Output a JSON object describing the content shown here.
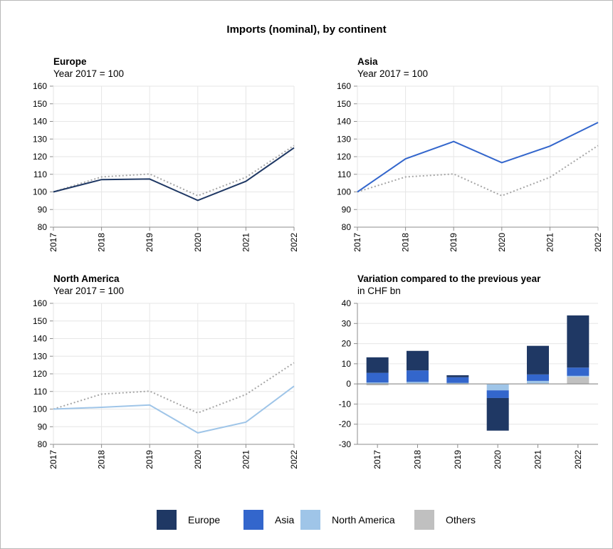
{
  "title": "Imports (nominal), by continent",
  "colors": {
    "europe": "#1f3864",
    "asia": "#3366cc",
    "north_america": "#9fc5e8",
    "others": "#c0c0c0",
    "reference_line": "#a6a6a6",
    "grid": "#e6e6e6"
  },
  "legend": [
    {
      "label": "Europe",
      "color": "#1f3864"
    },
    {
      "label": "Asia",
      "color": "#3366cc"
    },
    {
      "label": "North America",
      "color": "#9fc5e8"
    },
    {
      "label": "Others",
      "color": "#c0c0c0"
    }
  ],
  "chart_data": [
    {
      "type": "line",
      "title": "Europe",
      "subtitle": "Year 2017 = 100",
      "x": [
        "2017",
        "2018",
        "2019",
        "2020",
        "2021",
        "2022"
      ],
      "ylim": [
        80,
        160
      ],
      "yticks": [
        80,
        90,
        100,
        110,
        120,
        130,
        140,
        150,
        160
      ],
      "grid": true,
      "series": [
        {
          "values": [
            100,
            107,
            107.3,
            95.2,
            106,
            125
          ],
          "color": "#1f3864",
          "style": "solid"
        },
        {
          "values": [
            100,
            108.5,
            110.2,
            97.8,
            108.3,
            126.3
          ],
          "color": "#a6a6a6",
          "style": "dotted"
        }
      ]
    },
    {
      "type": "line",
      "title": "Asia",
      "subtitle": "Year 2017 = 100",
      "x": [
        "2017",
        "2018",
        "2019",
        "2020",
        "2021",
        "2022"
      ],
      "ylim": [
        80,
        160
      ],
      "yticks": [
        80,
        90,
        100,
        110,
        120,
        130,
        140,
        150,
        160
      ],
      "grid": true,
      "series": [
        {
          "values": [
            100,
            118.8,
            128.6,
            116.6,
            126,
            139.4
          ],
          "color": "#3366cc",
          "style": "solid"
        },
        {
          "values": [
            100,
            108.5,
            110.2,
            97.8,
            108.3,
            126.3
          ],
          "color": "#a6a6a6",
          "style": "dotted"
        }
      ]
    },
    {
      "type": "line",
      "title": "North America",
      "subtitle": "Year 2017 = 100",
      "x": [
        "2017",
        "2018",
        "2019",
        "2020",
        "2021",
        "2022"
      ],
      "ylim": [
        80,
        160
      ],
      "yticks": [
        80,
        90,
        100,
        110,
        120,
        130,
        140,
        150,
        160
      ],
      "grid": true,
      "series": [
        {
          "values": [
            100,
            101,
            102.3,
            86.5,
            92.6,
            113
          ],
          "color": "#9fc5e8",
          "style": "solid"
        },
        {
          "values": [
            100,
            108.5,
            110.2,
            97.8,
            108.3,
            126.3
          ],
          "color": "#a6a6a6",
          "style": "dotted"
        }
      ]
    },
    {
      "type": "bar",
      "stacked": true,
      "title": "Variation compared to the previous year",
      "subtitle": "in CHF bn",
      "categories": [
        "2017",
        "2018",
        "2019",
        "2020",
        "2021",
        "2022"
      ],
      "ylim": [
        -30,
        40
      ],
      "yticks": [
        -30,
        -20,
        -10,
        0,
        10,
        20,
        30,
        40
      ],
      "grid": true,
      "series": [
        {
          "name": "Others",
          "color": "#c0c0c0",
          "values": [
            -0.7,
            0.3,
            -0.3,
            -0.2,
            0.2,
            3.5
          ]
        },
        {
          "name": "North America",
          "color": "#9fc5e8",
          "values": [
            0.7,
            0.7,
            0.5,
            -3.0,
            1.3,
            0.5
          ]
        },
        {
          "name": "Asia",
          "color": "#3366cc",
          "values": [
            4.8,
            5.7,
            2.8,
            -3.8,
            3.2,
            4.1
          ]
        },
        {
          "name": "Europe",
          "color": "#1f3864",
          "values": [
            7.7,
            9.7,
            1.0,
            -16.2,
            14.2,
            25.9
          ]
        }
      ]
    }
  ]
}
